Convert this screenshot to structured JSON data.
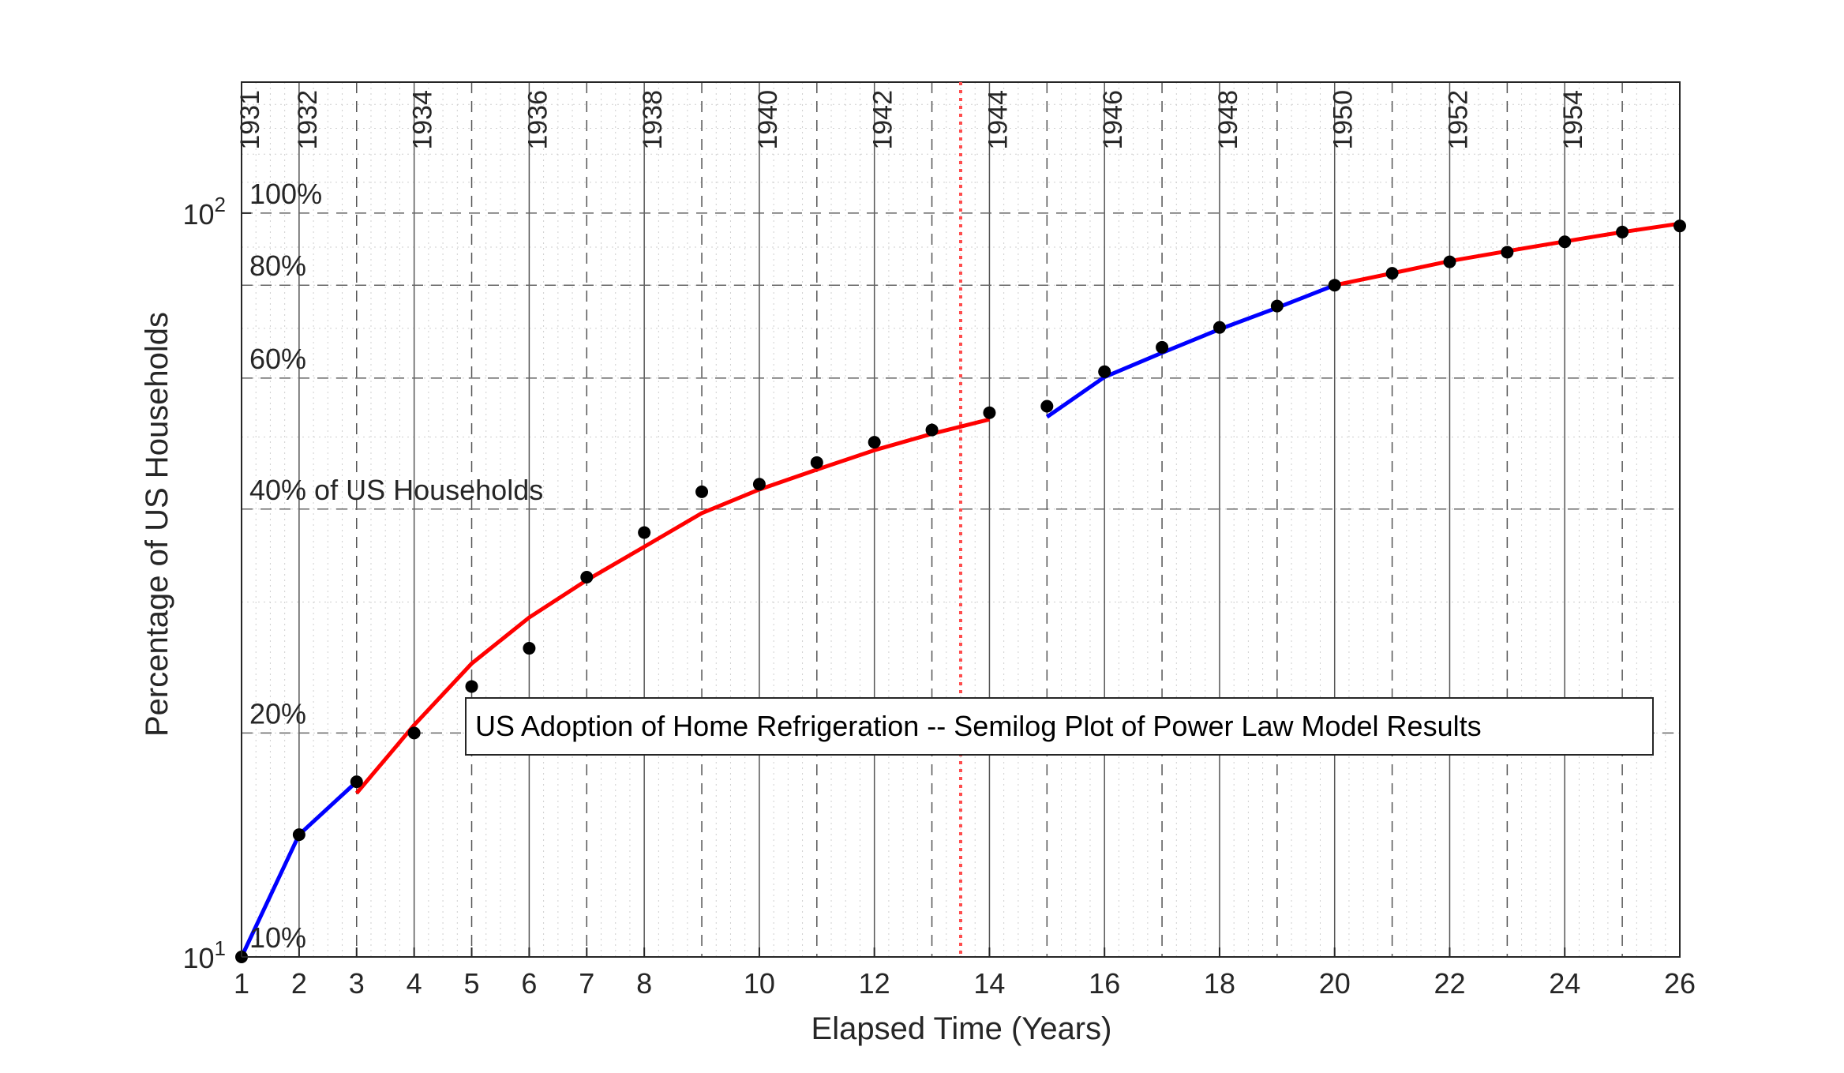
{
  "chart_data": {
    "type": "line",
    "title": "US Adoption of Home Refrigeration -- Semilog Plot of Power Law Model Results",
    "xlabel": "Elapsed Time (Years)",
    "ylabel": "Percentage of US Households",
    "y_scale": "log",
    "xlim": [
      1,
      26
    ],
    "ylim": [
      10,
      150
    ],
    "x_ticks": [
      "1",
      "2",
      "3",
      "4",
      "5",
      "6",
      "7",
      "8",
      "10",
      "12",
      "14",
      "16",
      "18",
      "20",
      "22",
      "24",
      "26"
    ],
    "y_ticks": [
      {
        "value": 10,
        "base": "10",
        "exp": "1"
      },
      {
        "value": 100,
        "base": "10",
        "exp": "2"
      }
    ],
    "year_labels": [
      {
        "x": 1,
        "label": "1931"
      },
      {
        "x": 2,
        "label": "1932"
      },
      {
        "x": 4,
        "label": "1934"
      },
      {
        "x": 6,
        "label": "1936"
      },
      {
        "x": 8,
        "label": "1938"
      },
      {
        "x": 10,
        "label": "1940"
      },
      {
        "x": 12,
        "label": "1942"
      },
      {
        "x": 14,
        "label": "1944"
      },
      {
        "x": 16,
        "label": "1946"
      },
      {
        "x": 18,
        "label": "1948"
      },
      {
        "x": 20,
        "label": "1950"
      },
      {
        "x": 22,
        "label": "1952"
      },
      {
        "x": 24,
        "label": "1954"
      }
    ],
    "percent_labels": [
      {
        "y": 10,
        "label": "10%"
      },
      {
        "y": 20,
        "label": "20%"
      },
      {
        "y": 40,
        "label": "40% of US Households"
      },
      {
        "y": 60,
        "label": "60%"
      },
      {
        "y": 80,
        "label": "80%"
      },
      {
        "y": 100,
        "label": "100%"
      }
    ],
    "reference_line_x": 13.5,
    "observed": {
      "x": [
        1,
        2,
        3,
        4,
        5,
        6,
        7,
        8,
        9,
        10,
        11,
        12,
        13,
        14,
        15,
        16,
        17,
        18,
        19,
        20,
        21,
        22,
        23,
        24,
        25,
        26
      ],
      "y": [
        10,
        14.6,
        17.2,
        20,
        23.1,
        26,
        32.4,
        37.2,
        42.2,
        43.2,
        46.2,
        49.2,
        51.1,
        53.9,
        55,
        61.2,
        66,
        70.2,
        75,
        80,
        83,
        86,
        88.6,
        91.5,
        94.3,
        96.1
      ]
    },
    "series": [
      {
        "color": "#0000ff",
        "x": [
          1,
          2,
          3
        ],
        "y": [
          10,
          14.6,
          17.2
        ]
      },
      {
        "color": "#ff0000",
        "x": [
          3,
          4,
          5,
          6,
          7,
          8,
          9,
          10,
          11,
          12,
          13,
          14
        ],
        "y": [
          16.6,
          20.5,
          24.8,
          28.6,
          32.1,
          35.6,
          39.5,
          42.5,
          45.2,
          48,
          50.5,
          52.8
        ]
      },
      {
        "color": "#0000ff",
        "x": [
          15,
          16,
          17,
          18,
          19,
          20
        ],
        "y": [
          53.2,
          60.2,
          64.9,
          69.8,
          74.6,
          80
        ]
      },
      {
        "color": "#ff0000",
        "x": [
          20,
          21,
          22,
          23,
          24,
          25,
          26
        ],
        "y": [
          80,
          83,
          86.2,
          88.9,
          91.6,
          94.3,
          96.8
        ]
      }
    ],
    "grid": true,
    "colors": {
      "fit_a": "#0000ff",
      "fit_b": "#ff0000",
      "reference": "#ff4d4d",
      "points": "#000000"
    }
  }
}
